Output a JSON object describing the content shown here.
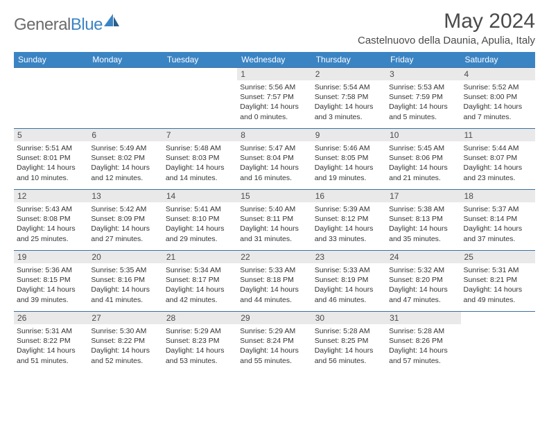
{
  "logo": {
    "text_gray": "General",
    "text_blue": "Blue"
  },
  "title": "May 2024",
  "location": "Castelnuovo della Daunia, Apulia, Italy",
  "colors": {
    "header_bg": "#3b84c4",
    "header_text": "#ffffff",
    "row_border": "#3b6fa0",
    "daynum_bg": "#e9e9e9",
    "text": "#333333",
    "logo_gray": "#6b6b6b",
    "logo_blue": "#3b84c4"
  },
  "weekdays": [
    "Sunday",
    "Monday",
    "Tuesday",
    "Wednesday",
    "Thursday",
    "Friday",
    "Saturday"
  ],
  "weeks": [
    [
      null,
      null,
      null,
      {
        "n": "1",
        "sr": "5:56 AM",
        "ss": "7:57 PM",
        "dl": "14 hours and 0 minutes."
      },
      {
        "n": "2",
        "sr": "5:54 AM",
        "ss": "7:58 PM",
        "dl": "14 hours and 3 minutes."
      },
      {
        "n": "3",
        "sr": "5:53 AM",
        "ss": "7:59 PM",
        "dl": "14 hours and 5 minutes."
      },
      {
        "n": "4",
        "sr": "5:52 AM",
        "ss": "8:00 PM",
        "dl": "14 hours and 7 minutes."
      }
    ],
    [
      {
        "n": "5",
        "sr": "5:51 AM",
        "ss": "8:01 PM",
        "dl": "14 hours and 10 minutes."
      },
      {
        "n": "6",
        "sr": "5:49 AM",
        "ss": "8:02 PM",
        "dl": "14 hours and 12 minutes."
      },
      {
        "n": "7",
        "sr": "5:48 AM",
        "ss": "8:03 PM",
        "dl": "14 hours and 14 minutes."
      },
      {
        "n": "8",
        "sr": "5:47 AM",
        "ss": "8:04 PM",
        "dl": "14 hours and 16 minutes."
      },
      {
        "n": "9",
        "sr": "5:46 AM",
        "ss": "8:05 PM",
        "dl": "14 hours and 19 minutes."
      },
      {
        "n": "10",
        "sr": "5:45 AM",
        "ss": "8:06 PM",
        "dl": "14 hours and 21 minutes."
      },
      {
        "n": "11",
        "sr": "5:44 AM",
        "ss": "8:07 PM",
        "dl": "14 hours and 23 minutes."
      }
    ],
    [
      {
        "n": "12",
        "sr": "5:43 AM",
        "ss": "8:08 PM",
        "dl": "14 hours and 25 minutes."
      },
      {
        "n": "13",
        "sr": "5:42 AM",
        "ss": "8:09 PM",
        "dl": "14 hours and 27 minutes."
      },
      {
        "n": "14",
        "sr": "5:41 AM",
        "ss": "8:10 PM",
        "dl": "14 hours and 29 minutes."
      },
      {
        "n": "15",
        "sr": "5:40 AM",
        "ss": "8:11 PM",
        "dl": "14 hours and 31 minutes."
      },
      {
        "n": "16",
        "sr": "5:39 AM",
        "ss": "8:12 PM",
        "dl": "14 hours and 33 minutes."
      },
      {
        "n": "17",
        "sr": "5:38 AM",
        "ss": "8:13 PM",
        "dl": "14 hours and 35 minutes."
      },
      {
        "n": "18",
        "sr": "5:37 AM",
        "ss": "8:14 PM",
        "dl": "14 hours and 37 minutes."
      }
    ],
    [
      {
        "n": "19",
        "sr": "5:36 AM",
        "ss": "8:15 PM",
        "dl": "14 hours and 39 minutes."
      },
      {
        "n": "20",
        "sr": "5:35 AM",
        "ss": "8:16 PM",
        "dl": "14 hours and 41 minutes."
      },
      {
        "n": "21",
        "sr": "5:34 AM",
        "ss": "8:17 PM",
        "dl": "14 hours and 42 minutes."
      },
      {
        "n": "22",
        "sr": "5:33 AM",
        "ss": "8:18 PM",
        "dl": "14 hours and 44 minutes."
      },
      {
        "n": "23",
        "sr": "5:33 AM",
        "ss": "8:19 PM",
        "dl": "14 hours and 46 minutes."
      },
      {
        "n": "24",
        "sr": "5:32 AM",
        "ss": "8:20 PM",
        "dl": "14 hours and 47 minutes."
      },
      {
        "n": "25",
        "sr": "5:31 AM",
        "ss": "8:21 PM",
        "dl": "14 hours and 49 minutes."
      }
    ],
    [
      {
        "n": "26",
        "sr": "5:31 AM",
        "ss": "8:22 PM",
        "dl": "14 hours and 51 minutes."
      },
      {
        "n": "27",
        "sr": "5:30 AM",
        "ss": "8:22 PM",
        "dl": "14 hours and 52 minutes."
      },
      {
        "n": "28",
        "sr": "5:29 AM",
        "ss": "8:23 PM",
        "dl": "14 hours and 53 minutes."
      },
      {
        "n": "29",
        "sr": "5:29 AM",
        "ss": "8:24 PM",
        "dl": "14 hours and 55 minutes."
      },
      {
        "n": "30",
        "sr": "5:28 AM",
        "ss": "8:25 PM",
        "dl": "14 hours and 56 minutes."
      },
      {
        "n": "31",
        "sr": "5:28 AM",
        "ss": "8:26 PM",
        "dl": "14 hours and 57 minutes."
      },
      null
    ]
  ],
  "labels": {
    "sunrise": "Sunrise:",
    "sunset": "Sunset:",
    "daylight": "Daylight:"
  }
}
